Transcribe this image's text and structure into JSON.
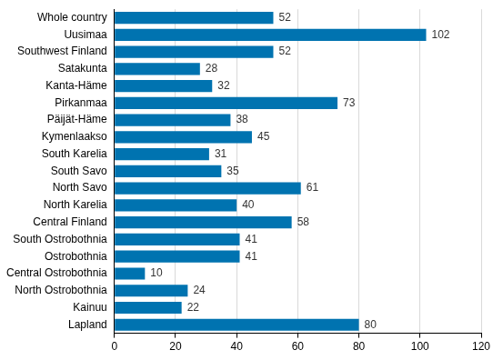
{
  "chart_data": {
    "type": "bar",
    "orientation": "horizontal",
    "categories": [
      "Whole country",
      "Uusimaa",
      "Southwest Finland",
      "Satakunta",
      "Kanta-Häme",
      "Pirkanmaa",
      "Päijät-Häme",
      "Kymenlaakso",
      "South Karelia",
      "South Savo",
      "North Savo",
      "North Karelia",
      "Central Finland",
      "South Ostrobothnia",
      "Ostrobothnia",
      "Central Ostrobothnia",
      "North Ostrobothnia",
      "Kainuu",
      "Lapland"
    ],
    "values": [
      52,
      102,
      52,
      28,
      32,
      73,
      38,
      45,
      31,
      35,
      61,
      40,
      58,
      41,
      41,
      10,
      24,
      22,
      80
    ],
    "color": "#0073b0",
    "xlim": [
      0,
      120
    ],
    "xticks": [
      0,
      20,
      40,
      60,
      80,
      100,
      120
    ],
    "grid": true,
    "data_labels": true
  }
}
